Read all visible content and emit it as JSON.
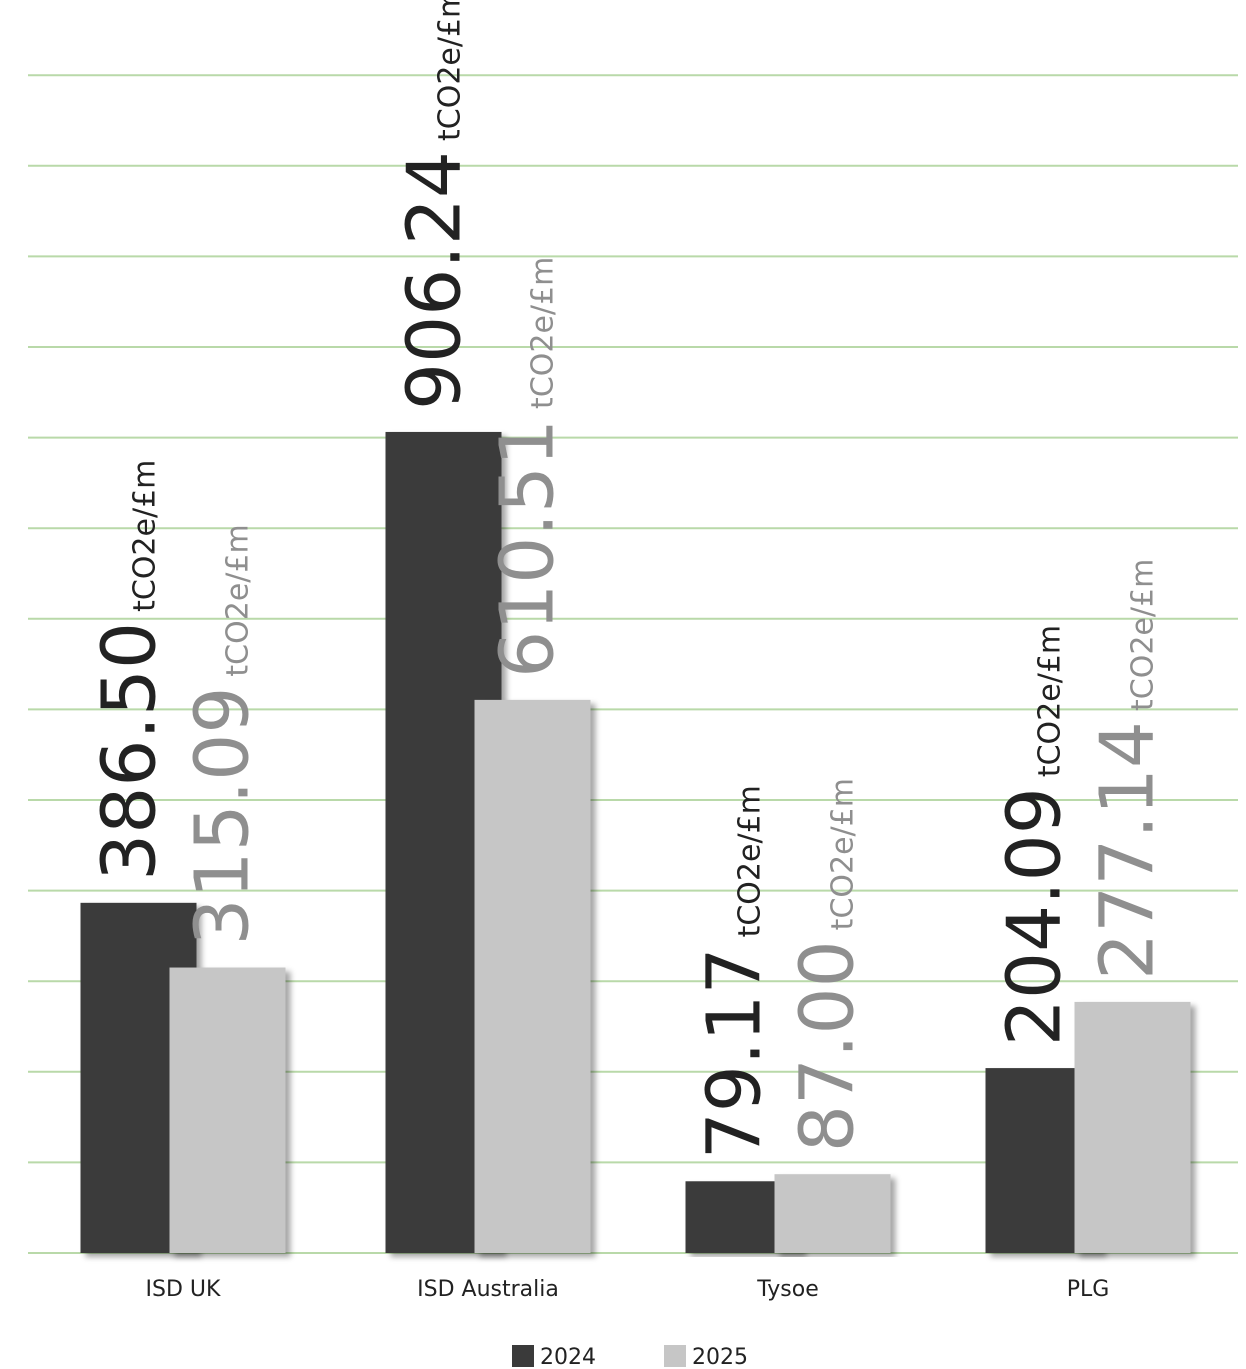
{
  "chart_data": {
    "type": "bar",
    "categories": [
      "ISD UK",
      "ISD Australia",
      "Tysoe",
      "PLG"
    ],
    "series": [
      {
        "name": "2024",
        "color": "#3a3a3a",
        "values": [
          386.5,
          906.24,
          79.17,
          204.09
        ],
        "labels": [
          "386.50",
          "906.24",
          "79.17",
          "204.09"
        ]
      },
      {
        "name": "2025",
        "color": "#c6c6c6",
        "values": [
          315.09,
          610.51,
          87.0,
          277.14
        ],
        "labels": [
          "315.09",
          "610.51",
          "87.00",
          "277.14"
        ]
      }
    ],
    "unit": "tCO2e/£m",
    "ylim": [
      0,
      1300
    ],
    "grid": true,
    "legend": "bottom",
    "label_colors": {
      "2024": "#222222",
      "2025": "#8f8f8f"
    },
    "gridline_color": "#b9d9a9"
  }
}
